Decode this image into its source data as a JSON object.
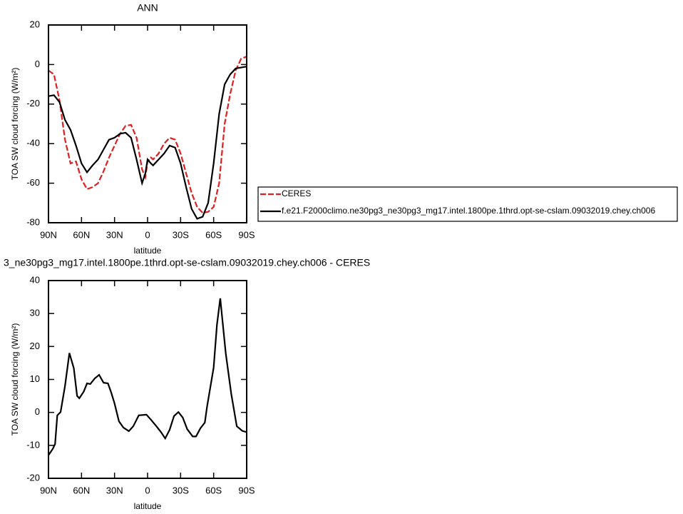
{
  "chart_data": [
    {
      "type": "line",
      "title": "ANN",
      "xlabel": "latitude",
      "ylabel": "TOA SW cloud forcing (W/m²)",
      "xlim": [
        90,
        -90
      ],
      "xticks": [
        {
          "value": 90,
          "label": "90N"
        },
        {
          "value": 60,
          "label": "60N"
        },
        {
          "value": 30,
          "label": "30N"
        },
        0,
        {
          "value": -30,
          "label": "30S"
        },
        {
          "value": -60,
          "label": "60S"
        },
        {
          "value": -90,
          "label": "90S"
        }
      ],
      "ylim": [
        -80,
        20
      ],
      "yticks": [
        -80,
        -60,
        -40,
        -20,
        0,
        20
      ],
      "legend": "right",
      "x": [
        90,
        85,
        80,
        75,
        70,
        65,
        60,
        55,
        50,
        45,
        40,
        35,
        30,
        25,
        20,
        15,
        10,
        5,
        2,
        0,
        -3,
        -5,
        -10,
        -15,
        -20,
        -25,
        -30,
        -35,
        -40,
        -45,
        -50,
        -55,
        -60,
        -65,
        -70,
        -75,
        -80,
        -85,
        -90
      ],
      "series": [
        {
          "name": "CERES",
          "color": "#e02020",
          "style": "dashed",
          "values": [
            -3,
            -5,
            -18,
            -38,
            -50,
            -49,
            -58,
            -63,
            -62,
            -60,
            -54,
            -47,
            -41,
            -35,
            -31,
            -30.5,
            -37,
            -53,
            -57,
            -49,
            -47,
            -48,
            -45,
            -40,
            -37,
            -38,
            -45,
            -55,
            -65,
            -72,
            -75,
            -74.5,
            -72,
            -60,
            -30,
            -15,
            -3,
            3,
            4
          ]
        },
        {
          "name": "f.e21.F2000climo.ne30pg3_ne30pg3_mg17.intel.1800pe.1thrd.opt-se-cslam.09032019.chey.ch006",
          "color": "#000000",
          "style": "solid",
          "values": [
            -16,
            -15.5,
            -19,
            -28,
            -33,
            -41,
            -50,
            -54.5,
            -51,
            -48,
            -43,
            -38,
            -37,
            -35,
            -34.5,
            -37,
            -48,
            -60,
            -55,
            -48,
            -50,
            -51,
            -48,
            -45,
            -41,
            -42,
            -50,
            -62,
            -73,
            -78,
            -77,
            -70,
            -50,
            -25,
            -10,
            -5,
            -2,
            -1.5,
            -1
          ]
        }
      ]
    },
    {
      "type": "line",
      "title": "3_ne30pg3_mg17.intel.1800pe.1thrd.opt-se-cslam.09032019.chey.ch006 - CERES",
      "xlabel": "latitude",
      "ylabel": "TOA SW cloud forcing (W/m²)",
      "xlim": [
        90,
        -90
      ],
      "xticks": [
        {
          "value": 90,
          "label": "90N"
        },
        {
          "value": 60,
          "label": "60N"
        },
        {
          "value": 30,
          "label": "30N"
        },
        0,
        {
          "value": -30,
          "label": "30S"
        },
        {
          "value": -60,
          "label": "60S"
        },
        {
          "value": -90,
          "label": "90S"
        }
      ],
      "ylim": [
        -20,
        40
      ],
      "yticks": [
        -20,
        -10,
        0,
        10,
        20,
        30,
        40
      ],
      "x": [
        90,
        86,
        84,
        82,
        79,
        75,
        71,
        67,
        64,
        62,
        58,
        55,
        52,
        48,
        44,
        40,
        36,
        33,
        30,
        26,
        22,
        17,
        13,
        8,
        1,
        -3,
        -8,
        -12,
        -16,
        -20,
        -24,
        -28,
        -32,
        -36,
        -41,
        -44,
        -48,
        -52,
        -54,
        -60,
        -63,
        -66,
        -71,
        -76,
        -81,
        -86,
        -90
      ],
      "series": [
        {
          "color": "#000000",
          "style": "solid",
          "values": [
            -13,
            -11,
            -9.6,
            -0.9,
            0.1,
            8,
            18,
            13.4,
            5,
            4.3,
            6.3,
            8.8,
            8.6,
            10.3,
            11.4,
            9,
            8.8,
            6,
            2.7,
            -2.7,
            -4.6,
            -5.7,
            -4.2,
            -0.9,
            -0.7,
            -2.2,
            -4.2,
            -5.9,
            -7.9,
            -5.3,
            -1.1,
            0.1,
            -1.6,
            -5.1,
            -7.3,
            -7.3,
            -4.8,
            -3.1,
            1.7,
            13.6,
            26.6,
            34.6,
            17.9,
            5.6,
            -4.2,
            -5.6,
            -6
          ]
        }
      ]
    }
  ]
}
